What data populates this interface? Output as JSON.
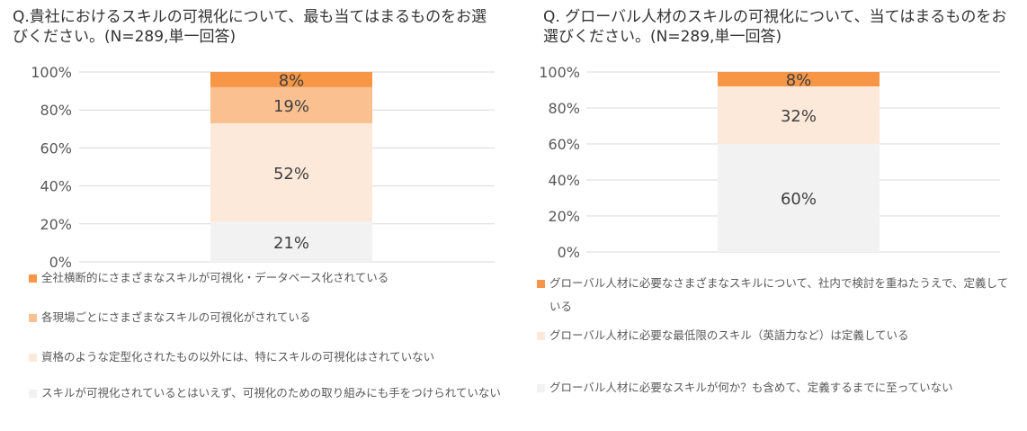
{
  "colors": [
    "#F79646",
    "#FAC090",
    "#FDE9D9",
    "#F2F2F2"
  ],
  "chart_data": [
    {
      "type": "bar",
      "stacked": true,
      "title": "Q.貴社におけるスキルの可視化について、最も当てはまるものをお選びください。(N=289,単一回答)",
      "yticks": [
        "0%",
        "20%",
        "40%",
        "60%",
        "80%",
        "100%"
      ],
      "ylim": [
        0,
        100
      ],
      "series": [
        {
          "name": "スキルが可視化されているとはいえず、可視化のための取り組みにも手をつけられていない",
          "value": 21,
          "label": "21%"
        },
        {
          "name": "資格のような定型化されたもの以外には、特にスキルの可視化はされていない",
          "value": 52,
          "label": "52%"
        },
        {
          "name": "各現場ごとにさまざまなスキルの可視化がされている",
          "value": 19,
          "label": "19%"
        },
        {
          "name": "全社横断的にさまざまなスキルが可視化・データベース化されている",
          "value": 8,
          "label": "8%"
        }
      ]
    },
    {
      "type": "bar",
      "stacked": true,
      "title": "Q. グローバル人材のスキルの可視化について、当てはまるものをお選びください。(N=289,単一回答)",
      "yticks": [
        "0%",
        "20%",
        "40%",
        "60%",
        "80%",
        "100%"
      ],
      "ylim": [
        0,
        100
      ],
      "series": [
        {
          "name": "グローバル人材に必要なスキルが何か？も含めて、定義するまでに至っていない",
          "value": 60,
          "label": "60%"
        },
        {
          "name": "グローバル人材に必要な最低限のスキル（英語力など）は定義している",
          "value": 32,
          "label": "32%"
        },
        {
          "name": "グローバル人材に必要なさまざまなスキルについて、社内で検討を重ねたうえで、定義している",
          "value": 8,
          "label": "8%"
        }
      ]
    }
  ]
}
